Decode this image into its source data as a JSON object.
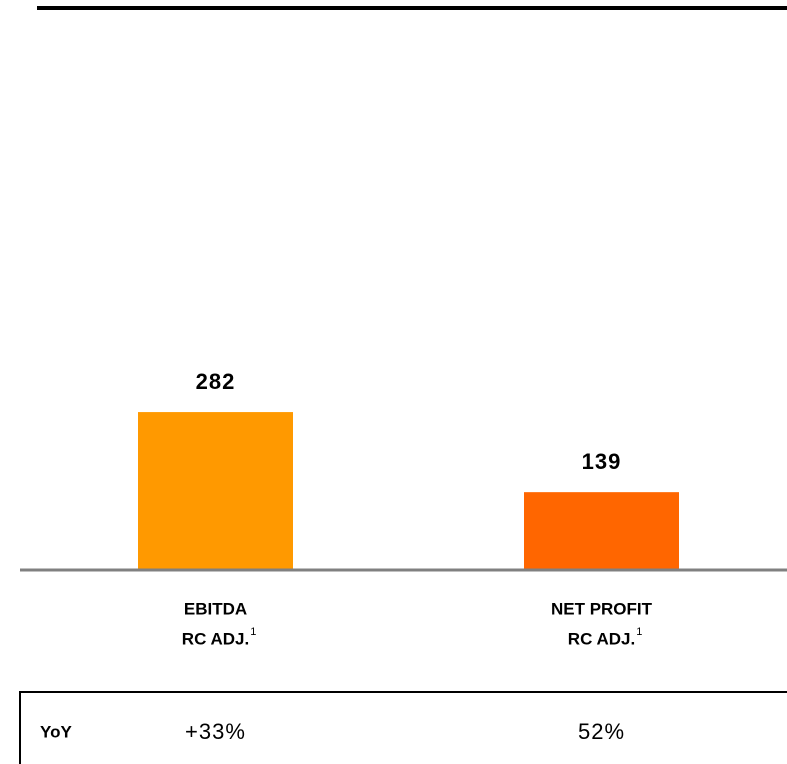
{
  "chart_data": {
    "type": "bar",
    "categories": [
      [
        "EBITDA",
        "RC ADJ."
      ],
      [
        "NET PROFIT",
        "RC ADJ."
      ]
    ],
    "footnote_marks": [
      "1",
      "1"
    ],
    "values": [
      282,
      139
    ],
    "colors": [
      "#ff9900",
      "#ff6600"
    ],
    "ylim": [
      0,
      1000
    ],
    "table": {
      "label": "YoY",
      "values": [
        "+33%",
        "52%"
      ]
    }
  }
}
